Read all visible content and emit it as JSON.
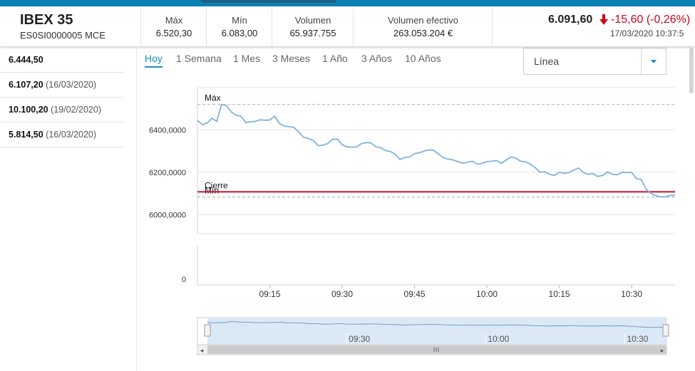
{
  "instrument": {
    "name": "IBEX 35",
    "isin": "ES0SI0000005 MCE",
    "last": "6.091,60",
    "change": "-15,60 (-0,26%)",
    "datetime": "17/03/2020 10:37:5"
  },
  "stats": [
    {
      "label": "Máx",
      "value": "6.520,30"
    },
    {
      "label": "Mín",
      "value": "6.083,00"
    },
    {
      "label": "Volumen",
      "value": "65.937.755"
    },
    {
      "label": "Volumen efectivo",
      "value": "263.053.204 €"
    }
  ],
  "side_list": [
    {
      "value": "6.444,50",
      "date": ""
    },
    {
      "value": "6.107,20",
      "date": "(16/03/2020)"
    },
    {
      "value": "10.100,20",
      "date": "(19/02/2020)"
    },
    {
      "value": "5.814,50",
      "date": "(16/03/2020)"
    }
  ],
  "tabs": [
    "Hoy",
    "1 Semana",
    "1 Mes",
    "3 Meses",
    "1 Año",
    "3 Años",
    "10 Años"
  ],
  "active_tab": "Hoy",
  "chart_type_select": {
    "value": "Línea"
  },
  "colors": {
    "accent": "#1a8fd0",
    "negative": "#d0021b",
    "line": "#7fb3dd",
    "close_line": "#c8102e",
    "topbar": "#0a7fb4"
  },
  "icons": {
    "change": "arrow-down-icon",
    "select": "caret-down-icon",
    "handle": "grip-icon"
  },
  "chart_data": {
    "type": "line",
    "y_tick_labels": [
      "6400,0000",
      "6200,0000",
      "6000,0000"
    ],
    "y_ticks": [
      6400,
      6200,
      6000
    ],
    "ylim": [
      5910,
      6600
    ],
    "volume_tick_label": "0",
    "x_tick_labels": [
      "09:15",
      "09:30",
      "09:45",
      "10:00",
      "10:15",
      "10:30"
    ],
    "x_ticks_min": [
      15,
      30,
      45,
      60,
      75,
      90
    ],
    "xlim_min": [
      0,
      99
    ],
    "nav_x_tick_labels": [
      "09:30",
      "10:00",
      "10:30"
    ],
    "nav_x_ticks_min": [
      30,
      60,
      90
    ],
    "ref_lines": [
      {
        "label": "Máx",
        "value": 6520.3,
        "style": "dashed"
      },
      {
        "label": "Mín",
        "value": 6083.0,
        "style": "dashed"
      },
      {
        "label": "Cierre",
        "value": 6107.2,
        "style": "solid"
      }
    ],
    "series": [
      {
        "x": [
          0,
          1,
          2,
          3,
          4,
          5,
          6,
          7,
          8,
          9,
          10,
          11,
          12,
          13,
          14,
          15,
          16,
          17,
          18,
          19,
          20,
          21,
          22,
          23,
          24,
          25,
          26,
          27,
          28,
          29,
          30,
          31,
          32,
          33,
          34,
          35,
          36,
          37,
          38,
          39,
          40,
          41,
          42,
          43,
          44,
          45,
          46,
          47,
          48,
          49,
          50,
          51,
          52,
          53,
          54,
          55,
          56,
          57,
          58,
          59,
          60,
          61,
          62,
          63,
          64,
          65,
          66,
          67,
          68,
          69,
          70,
          71,
          72,
          73,
          74,
          75,
          76,
          77,
          78,
          79,
          80,
          81,
          82,
          83,
          84,
          85,
          86,
          87,
          88,
          89,
          90,
          91,
          92,
          93,
          94,
          95,
          96,
          97,
          98,
          99
        ],
        "y": [
          6445,
          6425,
          6432,
          6455,
          6440,
          6520,
          6515,
          6485,
          6470,
          6465,
          6435,
          6438,
          6440,
          6448,
          6446,
          6447,
          6465,
          6430,
          6418,
          6415,
          6412,
          6390,
          6365,
          6360,
          6350,
          6326,
          6328,
          6335,
          6355,
          6357,
          6330,
          6320,
          6318,
          6320,
          6335,
          6340,
          6338,
          6320,
          6316,
          6302,
          6298,
          6284,
          6260,
          6270,
          6272,
          6288,
          6292,
          6300,
          6306,
          6303,
          6285,
          6268,
          6262,
          6258,
          6250,
          6242,
          6248,
          6252,
          6238,
          6242,
          6250,
          6252,
          6255,
          6242,
          6258,
          6272,
          6266,
          6252,
          6250,
          6238,
          6222,
          6200,
          6202,
          6190,
          6185,
          6200,
          6195,
          6198,
          6210,
          6220,
          6198,
          6190,
          6194,
          6180,
          6185,
          6202,
          6190,
          6188,
          6200,
          6198,
          6199,
          6170,
          6165,
          6120,
          6100,
          6090,
          6083,
          6084,
          6090,
          6091
        ]
      }
    ]
  }
}
